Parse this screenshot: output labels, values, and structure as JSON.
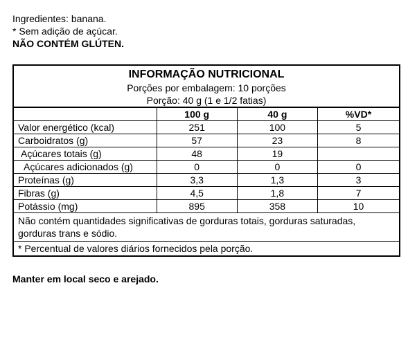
{
  "header": {
    "ingredients": "Ingredientes: banana.",
    "sugar_note": "* Sem adição de açúcar.",
    "gluten": "NÃO CONTÉM GLÚTEN."
  },
  "table": {
    "title": "INFORMAÇÃO NUTRICIONAL",
    "servings_per_pack": "Porções por embalagem: 10 porções",
    "serving_size": "Porção: 40 g (1 e 1/2  fatias)",
    "columns": {
      "col1": "100 g",
      "col2": "40 g",
      "col3": "%VD*"
    },
    "rows": [
      {
        "label": "Valor energético (kcal)",
        "v100": "251",
        "v40": "100",
        "vd": "5",
        "indent": 0
      },
      {
        "label": "Carboidratos (g)",
        "v100": "57",
        "v40": "23",
        "vd": "8",
        "indent": 0
      },
      {
        "label": "Açúcares totais (g)",
        "v100": "48",
        "v40": "19",
        "vd": "",
        "indent": 1
      },
      {
        "label": "Açúcares adicionados (g)",
        "v100": "0",
        "v40": "0",
        "vd": "0",
        "indent": 2
      },
      {
        "label": "Proteínas (g)",
        "v100": "3,3",
        "v40": "1,3",
        "vd": "3",
        "indent": 0
      },
      {
        "label": "Fibras (g)",
        "v100": "4,5",
        "v40": "1,8",
        "vd": "7",
        "indent": 0
      },
      {
        "label": "Potássio (mg)",
        "v100": "895",
        "v40": "358",
        "vd": "10",
        "indent": 0
      }
    ],
    "note": "Não contém quantidades significativas de gorduras totais, gorduras saturadas, gorduras trans e sódio.",
    "footnote": "* Percentual de valores diários fornecidos pela porção."
  },
  "storage": "Manter em local seco e arejado."
}
